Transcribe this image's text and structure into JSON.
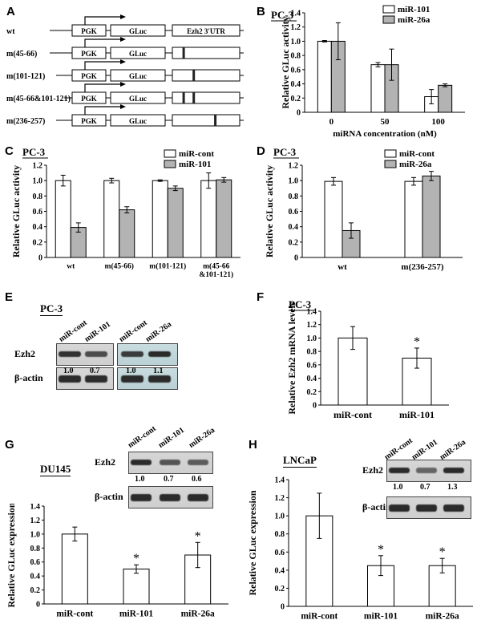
{
  "panels": {
    "A": {
      "letter": "A",
      "constructs": [
        {
          "name": "wt",
          "promoter": "PGK",
          "gene": "GLuc",
          "utr": "Ezh2 3'UTR",
          "mutations": []
        },
        {
          "name": "m(45-66)",
          "promoter": "PGK",
          "gene": "GLuc",
          "utr": "",
          "mutations": [
            0.15
          ]
        },
        {
          "name": "m(101-121)",
          "promoter": "PGK",
          "gene": "GLuc",
          "utr": "",
          "mutations": [
            0.3
          ]
        },
        {
          "name": "m(45-66&101-121)",
          "promoter": "PGK",
          "gene": "GLuc",
          "utr": "",
          "mutations": [
            0.15,
            0.3
          ]
        },
        {
          "name": "m(236-257)",
          "promoter": "PGK",
          "gene": "GLuc",
          "utr": "",
          "mutations": [
            0.62
          ]
        }
      ]
    },
    "B": {
      "letter": "B"
    },
    "C": {
      "letter": "C"
    },
    "D": {
      "letter": "D"
    },
    "E": {
      "letter": "E",
      "cell_line": "PC-3",
      "lanes": [
        "miR-cont",
        "miR-101",
        "miR-cont",
        "miR-26a"
      ],
      "protein_top": "Ezh2",
      "protein_bottom": "β-actin",
      "ratios": [
        "1.0",
        "0.7",
        "1.0",
        "1.1"
      ]
    },
    "F": {
      "letter": "F"
    },
    "G": {
      "letter": "G",
      "cell_line": "DU145",
      "lanes": [
        "miR-cont",
        "miR-101",
        "miR-26a"
      ],
      "protein_top": "Ezh2",
      "protein_bottom": "β-actin",
      "ratios": [
        "1.0",
        "0.7",
        "0.6"
      ]
    },
    "H": {
      "letter": "H",
      "cell_line": "LNCaP",
      "lanes": [
        "miR-cont",
        "miR-101",
        "miR-26a"
      ],
      "protein_top": "Ezh2",
      "protein_bottom": "β-actin",
      "ratios": [
        "1.0",
        "0.7",
        "1.3"
      ]
    }
  },
  "chart_data": [
    {
      "id": "B",
      "type": "bar",
      "title": "PC-3",
      "xlabel": "miRNA concentration (nM)",
      "ylabel": "Relative GLuc activity",
      "categories": [
        "0",
        "50",
        "100"
      ],
      "ylim": [
        0,
        1.4
      ],
      "yticks": [
        "0",
        "0.2",
        "0.4",
        "0.6",
        "0.8",
        "1.0",
        "1.2",
        "1.4"
      ],
      "legend": "top-right",
      "series": [
        {
          "name": "miR-101",
          "color": "#ffffff",
          "values": [
            1.0,
            0.67,
            0.22
          ],
          "errors": [
            0.01,
            0.03,
            0.1
          ]
        },
        {
          "name": "miR-26a",
          "color": "#b3b3b3",
          "values": [
            1.0,
            0.67,
            0.38
          ],
          "errors": [
            0.26,
            0.22,
            0.02
          ]
        }
      ],
      "significance": []
    },
    {
      "id": "C",
      "type": "bar",
      "title": "PC-3",
      "xlabel": "",
      "ylabel": "Relative GLuc activity",
      "categories": [
        "wt",
        "m(45-66)",
        "m(101-121)",
        "m(45-66\n&101-121)"
      ],
      "ylim": [
        0,
        1.2
      ],
      "yticks": [
        "0",
        "0.2",
        "0.4",
        "0.6",
        "0.8",
        "1.0",
        "1.2"
      ],
      "legend": "top-right",
      "series": [
        {
          "name": "miR-cont",
          "color": "#ffffff",
          "values": [
            1.0,
            1.0,
            1.0,
            1.0
          ],
          "errors": [
            0.07,
            0.03,
            0.01,
            0.1
          ]
        },
        {
          "name": "miR-101",
          "color": "#b3b3b3",
          "values": [
            0.39,
            0.62,
            0.9,
            1.01
          ],
          "errors": [
            0.06,
            0.04,
            0.03,
            0.03
          ]
        }
      ],
      "significance": []
    },
    {
      "id": "D",
      "type": "bar",
      "title": "PC-3",
      "xlabel": "",
      "ylabel": "Relative GLuc activity",
      "categories": [
        "wt",
        "m(236-257)"
      ],
      "ylim": [
        0,
        1.2
      ],
      "yticks": [
        "0",
        "0.2",
        "0.4",
        "0.6",
        "0.8",
        "1.0",
        "1.2"
      ],
      "legend": "top-right",
      "series": [
        {
          "name": "miR-cont",
          "color": "#ffffff",
          "values": [
            0.99,
            0.99
          ],
          "errors": [
            0.05,
            0.05
          ]
        },
        {
          "name": "miR-26a",
          "color": "#b3b3b3",
          "values": [
            0.35,
            1.06
          ],
          "errors": [
            0.1,
            0.06
          ]
        }
      ],
      "significance": []
    },
    {
      "id": "F",
      "type": "bar",
      "title": "PC-3",
      "xlabel": "",
      "ylabel": "Relative Ezh2 mRNA levels",
      "categories": [
        "miR-cont",
        "miR-101"
      ],
      "ylim": [
        0,
        1.4
      ],
      "yticks": [
        "0",
        "0.2",
        "0.4",
        "0.6",
        "0.8",
        "1.0",
        "1.2",
        "1.4"
      ],
      "legend": "",
      "series": [
        {
          "name": "",
          "color": "#ffffff",
          "values": [
            1.0,
            0.7
          ],
          "errors": [
            0.17,
            0.15
          ]
        }
      ],
      "significance": [
        "",
        "*"
      ]
    },
    {
      "id": "G",
      "type": "bar",
      "title": "",
      "xlabel": "",
      "ylabel": "Relative GLuc expression",
      "categories": [
        "miR-cont",
        "miR-101",
        "miR-26a"
      ],
      "ylim": [
        0,
        1.4
      ],
      "yticks": [
        "0",
        "0.2",
        "0.4",
        "0.6",
        "0.8",
        "1.0",
        "1.2",
        "1.4"
      ],
      "legend": "",
      "series": [
        {
          "name": "",
          "color": "#ffffff",
          "values": [
            1.0,
            0.5,
            0.7
          ],
          "errors": [
            0.1,
            0.06,
            0.18
          ]
        }
      ],
      "significance": [
        "",
        "*",
        "*"
      ]
    },
    {
      "id": "H",
      "type": "bar",
      "title": "",
      "xlabel": "",
      "ylabel": "Relative GLuc expression",
      "categories": [
        "miR-cont",
        "miR-101",
        "miR-26a"
      ],
      "ylim": [
        0,
        1.4
      ],
      "yticks": [
        "0",
        "0.2",
        "0.4",
        "0.6",
        "0.8",
        "1.0",
        "1.2",
        "1.4"
      ],
      "legend": "",
      "series": [
        {
          "name": "",
          "color": "#ffffff",
          "values": [
            1.0,
            0.45,
            0.45
          ],
          "errors": [
            0.25,
            0.11,
            0.08
          ]
        }
      ],
      "significance": [
        "",
        "*",
        "*"
      ]
    }
  ]
}
